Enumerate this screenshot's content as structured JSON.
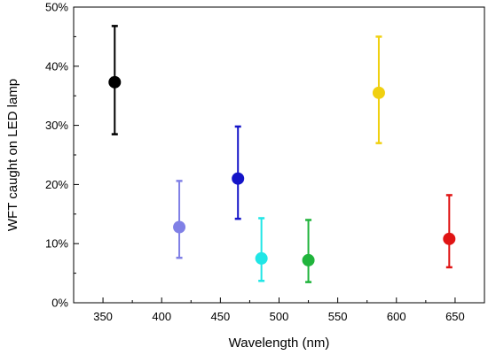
{
  "chart_data": {
    "type": "scatter",
    "title": "",
    "xlabel": "Wavelength (nm)",
    "ylabel": "WFT caught on LED lamp",
    "xlim": [
      325,
      675
    ],
    "ylim": [
      0,
      50
    ],
    "xticks": [
      350,
      400,
      450,
      500,
      550,
      600,
      650
    ],
    "yticks": [
      0,
      10,
      20,
      30,
      40,
      50
    ],
    "ytick_labels": [
      "0%",
      "10%",
      "20%",
      "30%",
      "40%",
      "50%"
    ],
    "grid": false,
    "legend": "none",
    "points": [
      {
        "x": 360,
        "y": 37.3,
        "low": 28.5,
        "high": 46.8,
        "color": "#000000"
      },
      {
        "x": 415,
        "y": 12.8,
        "low": 7.6,
        "high": 20.6,
        "color": "#8080e6"
      },
      {
        "x": 465,
        "y": 21.0,
        "low": 14.2,
        "high": 29.8,
        "color": "#1414c8"
      },
      {
        "x": 485,
        "y": 7.5,
        "low": 3.7,
        "high": 14.3,
        "color": "#20e6e6"
      },
      {
        "x": 525,
        "y": 7.2,
        "low": 3.5,
        "high": 14.0,
        "color": "#20b43c"
      },
      {
        "x": 585,
        "y": 35.5,
        "low": 27.0,
        "high": 45.0,
        "color": "#f0d010"
      },
      {
        "x": 645,
        "y": 10.8,
        "low": 6.0,
        "high": 18.2,
        "color": "#e01414"
      }
    ]
  }
}
